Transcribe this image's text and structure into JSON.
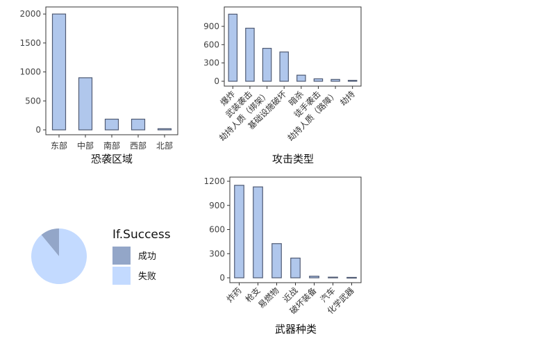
{
  "colors": {
    "bar_fill": "#b0c7ec",
    "bar_stroke": "#4f5a73",
    "axis": "#333333",
    "success": "#93a6c8",
    "failure": "#c3daff"
  },
  "chart_data": [
    {
      "type": "bar",
      "xlabel": "恐袭区域",
      "ylabel": "",
      "categories": [
        "东部",
        "中部",
        "南部",
        "西部",
        "北部"
      ],
      "values": [
        2000,
        900,
        185,
        185,
        20
      ],
      "ylim": [
        0,
        2050
      ],
      "yticks": [
        0,
        500,
        1000,
        1500,
        2000
      ],
      "grid": false
    },
    {
      "type": "bar",
      "xlabel": "攻击类型",
      "ylabel": "",
      "categories": [
        "爆炸",
        "武装袭击",
        "劫持人质（绑架）",
        "基础设施破坏",
        "暗杀",
        "徒手袭击",
        "劫持人质（路障）",
        "劫持"
      ],
      "values": [
        1100,
        870,
        540,
        480,
        100,
        40,
        30,
        15
      ],
      "ylim": [
        0,
        1150
      ],
      "yticks": [
        0,
        300,
        600,
        900
      ],
      "grid": false
    },
    {
      "type": "bar",
      "xlabel": "武器种类",
      "ylabel": "",
      "categories": [
        "炸药",
        "枪支",
        "易燃物",
        "近战",
        "破坏装备",
        "汽车",
        "化学武器"
      ],
      "values": [
        1150,
        1130,
        425,
        245,
        20,
        8,
        5
      ],
      "ylim": [
        0,
        1200
      ],
      "yticks": [
        0,
        300,
        600,
        900,
        1200
      ],
      "grid": false
    },
    {
      "type": "pie",
      "legend_title": "If.Success",
      "legend_position": "right",
      "slices": [
        {
          "label": "成功",
          "value": 0.11
        },
        {
          "label": "失败",
          "value": 0.89
        }
      ]
    }
  ]
}
